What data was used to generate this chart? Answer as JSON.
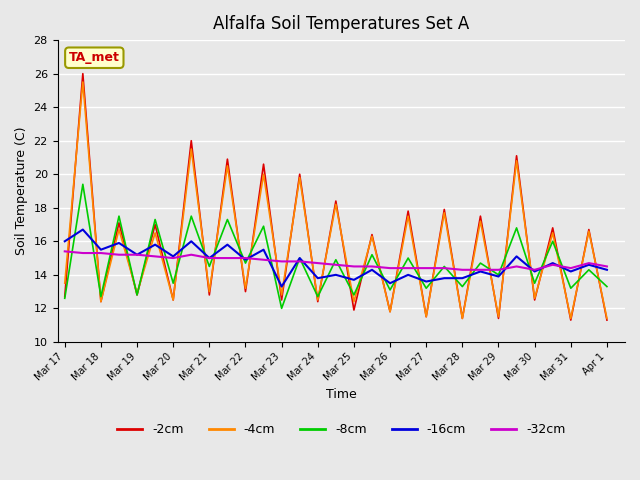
{
  "title": "Alfalfa Soil Temperatures Set A",
  "xlabel": "Time",
  "ylabel": "Soil Temperature (C)",
  "ylim": [
    10,
    28
  ],
  "xlim": [
    0,
    15.5
  ],
  "background_color": "#e8e8e8",
  "plot_bg_color": "#e8e8e8",
  "annotation_text": "TA_met",
  "annotation_color": "#cc0000",
  "annotation_bg": "#ffffcc",
  "annotation_border": "#999900",
  "xtick_labels": [
    "Mar 17",
    "Mar 18",
    "Mar 19",
    "Mar 20",
    "Mar 21",
    "Mar 22",
    "Mar 23",
    "Mar 24",
    "Mar 25",
    "Mar 26",
    "Mar 27",
    "Mar 28",
    "Mar 29",
    "Mar 30",
    "Mar 31",
    "Apr 1"
  ],
  "legend_labels": [
    "-2cm",
    "-4cm",
    "-8cm",
    "-16cm",
    "-32cm"
  ],
  "legend_colors": [
    "#dd0000",
    "#ff8800",
    "#00cc00",
    "#0000dd",
    "#cc00cc"
  ],
  "line_widths": [
    1.2,
    1.2,
    1.2,
    1.5,
    1.5
  ],
  "series": {
    "2cm": [
      12.7,
      26.0,
      12.4,
      17.1,
      12.8,
      17.0,
      12.5,
      22.0,
      12.8,
      20.9,
      13.0,
      20.6,
      12.5,
      20.0,
      12.4,
      18.4,
      11.9,
      16.4,
      11.8,
      17.8,
      11.5,
      17.9,
      11.4,
      17.5,
      11.4,
      21.1,
      12.5,
      16.8,
      11.3,
      16.7,
      11.3
    ],
    "4cm": [
      13.5,
      25.5,
      12.4,
      16.7,
      12.9,
      16.5,
      12.5,
      21.5,
      13.0,
      20.5,
      13.2,
      20.0,
      12.8,
      19.8,
      12.5,
      18.2,
      12.4,
      16.3,
      11.8,
      17.5,
      11.5,
      17.7,
      11.4,
      17.2,
      11.5,
      20.8,
      12.6,
      16.5,
      11.4,
      16.6,
      11.4
    ],
    "8cm": [
      12.6,
      19.4,
      12.7,
      17.5,
      12.8,
      17.3,
      13.5,
      17.5,
      14.5,
      17.3,
      14.7,
      16.9,
      12.0,
      15.0,
      12.7,
      14.9,
      12.8,
      15.2,
      13.1,
      15.0,
      13.2,
      14.5,
      13.3,
      14.7,
      14.0,
      16.8,
      13.5,
      16.0,
      13.2,
      14.3,
      13.3
    ],
    "16cm": [
      16.0,
      16.7,
      15.5,
      15.9,
      15.2,
      15.8,
      15.1,
      16.0,
      15.0,
      15.8,
      14.9,
      15.5,
      13.3,
      15.0,
      13.8,
      14.0,
      13.7,
      14.3,
      13.5,
      14.0,
      13.6,
      13.8,
      13.8,
      14.2,
      13.9,
      15.1,
      14.2,
      14.7,
      14.2,
      14.6,
      14.3
    ],
    "32cm": [
      15.4,
      15.3,
      15.3,
      15.2,
      15.2,
      15.1,
      15.0,
      15.2,
      15.0,
      15.0,
      15.0,
      14.9,
      14.8,
      14.8,
      14.7,
      14.6,
      14.5,
      14.5,
      14.4,
      14.4,
      14.4,
      14.4,
      14.3,
      14.3,
      14.3,
      14.5,
      14.3,
      14.6,
      14.4,
      14.7,
      14.5
    ]
  }
}
